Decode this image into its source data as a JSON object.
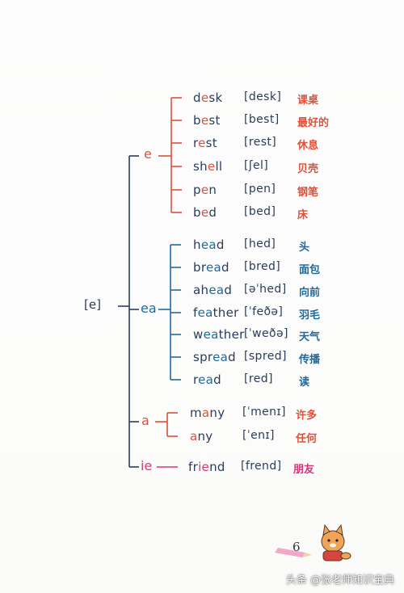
{
  "root_label": "[e]",
  "groups": [
    {
      "key": "e",
      "label": "e",
      "words": [
        {
          "pre": "d",
          "hi": "e",
          "post": "sk",
          "ipa": "[desk]",
          "cn": "课桌"
        },
        {
          "pre": "b",
          "hi": "e",
          "post": "st",
          "ipa": "[best]",
          "cn": "最好的"
        },
        {
          "pre": "r",
          "hi": "e",
          "post": "st",
          "ipa": "[rest]",
          "cn": "休息"
        },
        {
          "pre": "sh",
          "hi": "e",
          "post": "ll",
          "ipa": "[ʃel]",
          "cn": "贝壳"
        },
        {
          "pre": "p",
          "hi": "e",
          "post": "n",
          "ipa": "[pen]",
          "cn": "钢笔"
        },
        {
          "pre": "b",
          "hi": "e",
          "post": "d",
          "ipa": "[bed]",
          "cn": "床"
        }
      ]
    },
    {
      "key": "ea",
      "label": "ea",
      "words": [
        {
          "pre": "h",
          "hi": "ea",
          "post": "d",
          "ipa": "[hed]",
          "cn": "头"
        },
        {
          "pre": "br",
          "hi": "ea",
          "post": "d",
          "ipa": "[bred]",
          "cn": "面包"
        },
        {
          "pre": "ah",
          "hi": "ea",
          "post": "d",
          "ipa": "[əˈhed]",
          "cn": "向前"
        },
        {
          "pre": "f",
          "hi": "ea",
          "post": "ther",
          "ipa": "[ˈfeðə]",
          "cn": "羽毛"
        },
        {
          "pre": "w",
          "hi": "ea",
          "post": "ther",
          "ipa": "[ˈweðə]",
          "cn": "天气"
        },
        {
          "pre": "spr",
          "hi": "ea",
          "post": "d",
          "ipa": "[spred]",
          "cn": "传播"
        },
        {
          "pre": "r",
          "hi": "ea",
          "post": "d",
          "ipa": "[red]",
          "cn": "读"
        }
      ]
    },
    {
      "key": "a",
      "label": "a",
      "words": [
        {
          "pre": "m",
          "hi": "a",
          "post": "ny",
          "ipa": "[ˈmenɪ]",
          "cn": "许多"
        },
        {
          "pre": "",
          "hi": "a",
          "post": "ny",
          "ipa": "[ˈenɪ]",
          "cn": "任何"
        }
      ]
    },
    {
      "key": "ie",
      "label": "ie",
      "words": [
        {
          "pre": "fr",
          "hi": "ie",
          "post": "nd",
          "ipa": "[frend]",
          "cn": "朋友"
        }
      ]
    }
  ],
  "page_number": "6",
  "watermark": "头条 @张老师知识宝典",
  "colors": {
    "e": "#e0503a",
    "ea": "#1f6a9c",
    "a": "#e0503a",
    "ie": "#d6367a",
    "ink": "#2a3d5c"
  }
}
